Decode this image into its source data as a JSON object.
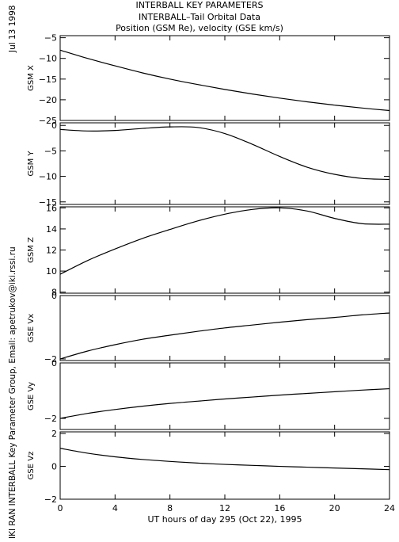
{
  "header": {
    "line1": "INTERBALL KEY PARAMETERS",
    "line2": "INTERBALL–Tail Orbital Data",
    "line3": "Position (GSM Re), velocity (GSE km/s)"
  },
  "side": {
    "date": "Jul 13 1998",
    "credit": "IKI RAN INTERBALL Key Parameter Group, Email: apetrukov@iki.rssi.ru"
  },
  "chart_data": {
    "type": "line",
    "xlabel": "UT hours of day 295 (Oct 22), 1995",
    "xlim": [
      0,
      24
    ],
    "xticks": [
      0,
      4,
      8,
      12,
      16,
      20,
      24
    ],
    "xtick_labels": [
      "0",
      "4",
      "8",
      "12",
      "16",
      "20",
      "24"
    ],
    "x": [
      0,
      2,
      4,
      6,
      8,
      10,
      12,
      14,
      16,
      18,
      20,
      22,
      24
    ],
    "panels": [
      {
        "ylabel": "GSM X",
        "ylim": [
          -25,
          -4.5
        ],
        "yticks": [
          -25,
          -20,
          -15,
          -10,
          -5
        ],
        "ytick_labels": [
          "−25",
          "−20",
          "−15",
          "−10",
          "−5"
        ],
        "values": [
          -8.0,
          -10.0,
          -11.8,
          -13.5,
          -15.0,
          -16.3,
          -17.5,
          -18.6,
          -19.6,
          -20.5,
          -21.3,
          -22.0,
          -22.6
        ]
      },
      {
        "ylabel": "GSM Y",
        "ylim": [
          -15.5,
          0.5
        ],
        "yticks": [
          -15,
          -10,
          -5,
          0
        ],
        "ytick_labels": [
          "−15",
          "−10",
          "−5",
          "0"
        ],
        "values": [
          -0.8,
          -1.1,
          -1.0,
          -0.6,
          -0.3,
          -0.4,
          -1.6,
          -3.7,
          -6.1,
          -8.2,
          -9.6,
          -10.4,
          -10.6
        ]
      },
      {
        "ylabel": "GSM Z",
        "ylim": [
          7.9,
          16.1
        ],
        "yticks": [
          8,
          10,
          12,
          14,
          16
        ],
        "ytick_labels": [
          "8",
          "10",
          "12",
          "14",
          "16"
        ],
        "values": [
          9.7,
          11.0,
          12.1,
          13.1,
          13.95,
          14.75,
          15.4,
          15.85,
          16.0,
          15.7,
          15.0,
          14.5,
          14.45
        ]
      },
      {
        "ylabel": "GSE Vx",
        "ylim": [
          -2.05,
          0.0
        ],
        "yticks": [
          -2,
          0
        ],
        "ytick_labels": [
          "−2",
          "0"
        ],
        "values": [
          -2.0,
          -1.75,
          -1.55,
          -1.38,
          -1.25,
          -1.13,
          -1.02,
          -0.93,
          -0.84,
          -0.76,
          -0.69,
          -0.61,
          -0.55
        ]
      },
      {
        "ylabel": "GSE Vy",
        "ylim": [
          -2.4,
          0.0
        ],
        "yticks": [
          -2,
          0
        ],
        "ytick_labels": [
          "−2",
          "0"
        ],
        "values": [
          -2.0,
          -1.82,
          -1.68,
          -1.56,
          -1.46,
          -1.38,
          -1.3,
          -1.23,
          -1.16,
          -1.1,
          -1.04,
          -0.98,
          -0.93
        ]
      },
      {
        "ylabel": "GSE Vz",
        "ylim": [
          -2.0,
          2.1
        ],
        "yticks": [
          -2,
          0,
          2
        ],
        "ytick_labels": [
          "−2",
          "0",
          "2"
        ],
        "values": [
          1.1,
          0.8,
          0.58,
          0.42,
          0.3,
          0.2,
          0.12,
          0.06,
          0.0,
          -0.05,
          -0.1,
          -0.15,
          -0.2
        ]
      }
    ]
  }
}
